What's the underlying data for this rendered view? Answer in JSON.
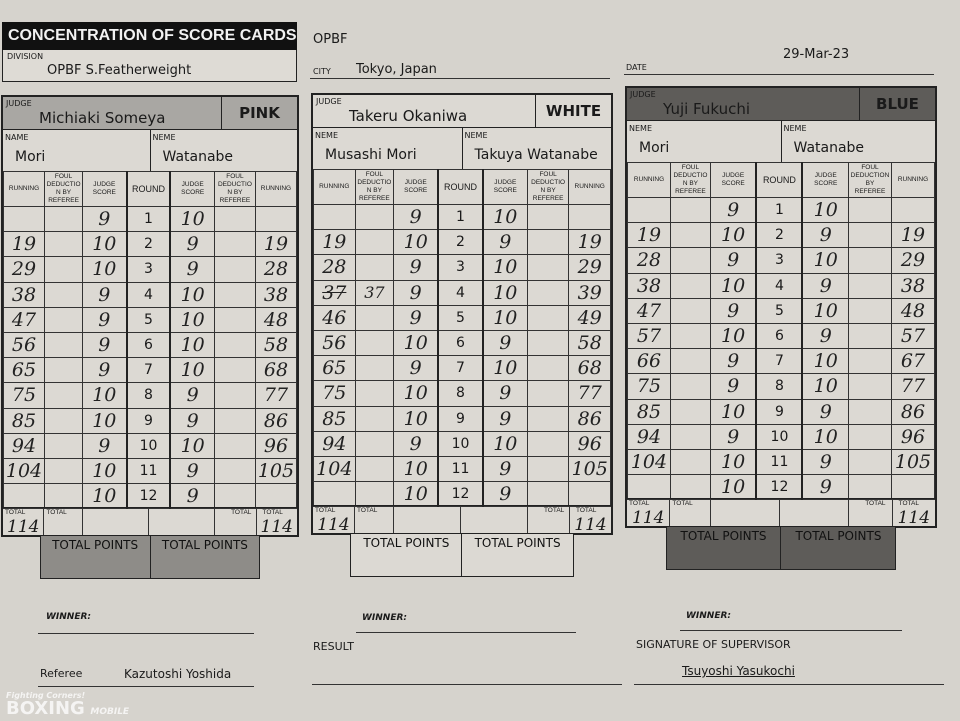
{
  "header": {
    "title": "CONCENTRATION OF SCORE CARDS",
    "division_label": "DIVISION",
    "division": "OPBF S.Featherweight",
    "organization": "OPBF",
    "city_label": "CITY",
    "city": "Tokyo, Japan",
    "date_label": "DATE",
    "date": "29-Mar-23"
  },
  "columns": {
    "running": "RUNNING",
    "foul": "FOUL DEDUCTION BY REFEREE",
    "judge_score": "JUDGE SCORE",
    "round": "ROUND",
    "total": "TOTAL",
    "total_points": "TOTAL POINTS"
  },
  "rounds": [
    "1",
    "2",
    "3",
    "4",
    "5",
    "6",
    "7",
    "8",
    "9",
    "10",
    "11",
    "12"
  ],
  "cards": [
    {
      "judge_label": "JUDGE",
      "judge": "Michiaki Someya",
      "color_label": "PINK",
      "left_name_label": "NAME",
      "left_name": "Mori",
      "right_name_label": "NEME",
      "right_name": "Watanabe",
      "left_scores": [
        "9",
        "10",
        "10",
        "9",
        "9",
        "9",
        "9",
        "10",
        "10",
        "9",
        "10",
        "10"
      ],
      "left_running": [
        "",
        "19",
        "29",
        "38",
        "47",
        "56",
        "65",
        "75",
        "85",
        "94",
        "104",
        ""
      ],
      "left_total": "114",
      "right_scores": [
        "10",
        "9",
        "9",
        "10",
        "10",
        "10",
        "10",
        "9",
        "9",
        "10",
        "9",
        "9"
      ],
      "right_running": [
        "",
        "19",
        "28",
        "38",
        "48",
        "58",
        "68",
        "77",
        "86",
        "96",
        "105",
        ""
      ],
      "right_total": "114",
      "header_color": "#a9a7a3",
      "totals_color": "#8e8c88"
    },
    {
      "judge_label": "JUDGE",
      "judge": "Takeru Okaniwa",
      "color_label": "WHITE",
      "left_name_label": "NEME",
      "left_name": "Musashi Mori",
      "right_name_label": "NEME",
      "right_name": "Takuya Watanabe",
      "left_scores": [
        "9",
        "10",
        "9",
        "9",
        "9",
        "10",
        "9",
        "10",
        "10",
        "9",
        "10",
        "10"
      ],
      "left_running": [
        "",
        "19",
        "28",
        "37",
        "46",
        "56",
        "65",
        "75",
        "85",
        "94",
        "104",
        ""
      ],
      "left_running_correction_round4": "37",
      "left_total": "114",
      "right_scores": [
        "10",
        "9",
        "10",
        "10",
        "10",
        "9",
        "10",
        "9",
        "9",
        "10",
        "9",
        "9"
      ],
      "right_running": [
        "",
        "19",
        "29",
        "39",
        "49",
        "58",
        "68",
        "77",
        "86",
        "96",
        "105",
        ""
      ],
      "right_total": "114",
      "header_color": "#dcd9d3",
      "totals_color": "#dcd9d3"
    },
    {
      "judge_label": "JUDGE",
      "judge": "Yuji Fukuchi",
      "color_label": "BLUE",
      "left_name_label": "NEME",
      "left_name": "Mori",
      "right_name_label": "NEME",
      "right_name": "Watanabe",
      "left_scores": [
        "9",
        "10",
        "9",
        "10",
        "9",
        "10",
        "9",
        "9",
        "10",
        "9",
        "10",
        "10"
      ],
      "left_running": [
        "",
        "19",
        "28",
        "38",
        "47",
        "57",
        "66",
        "75",
        "85",
        "94",
        "104",
        ""
      ],
      "left_total": "114",
      "right_scores": [
        "10",
        "9",
        "10",
        "9",
        "10",
        "9",
        "10",
        "10",
        "9",
        "10",
        "9",
        "9"
      ],
      "right_running": [
        "",
        "19",
        "29",
        "38",
        "48",
        "57",
        "67",
        "77",
        "86",
        "96",
        "105",
        ""
      ],
      "right_total": "114",
      "header_color": "#5e5c59",
      "totals_color": "#5e5c59"
    }
  ],
  "footer": {
    "winner_label": "WINNER:",
    "result_label": "RESULT",
    "referee_label": "Referee",
    "referee": "Kazutoshi Yoshida",
    "supervisor_label": "SIGNATURE OF SUPERVISOR",
    "supervisor": "Tsuyoshi Yasukochi",
    "watermark": "Fighting Corners! BOXING MOBILE"
  }
}
